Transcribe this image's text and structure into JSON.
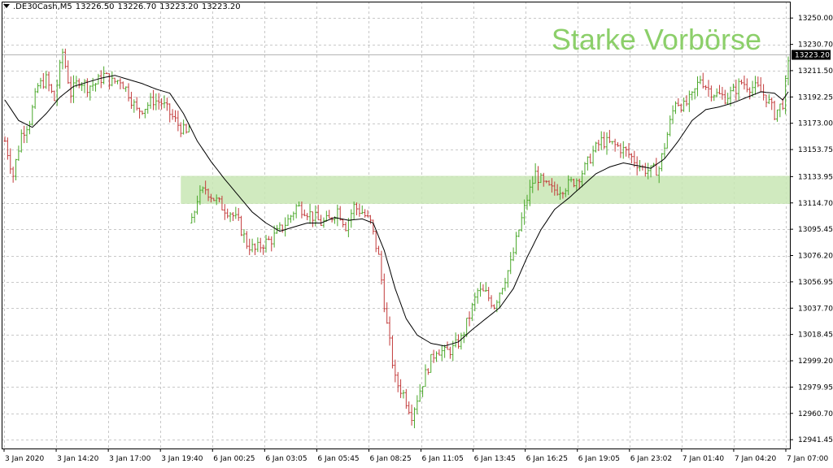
{
  "header": {
    "symbol": ".DE30Cash,M5",
    "open": "13226.50",
    "high": "13226.70",
    "low": "13223.20",
    "close": "13223.20"
  },
  "annotation": "Starke Vorbörse",
  "current_price": "13223.20",
  "colors": {
    "bull": "#4aa82a",
    "bear": "#c23a3a",
    "ma": "#000000",
    "zone": "#c8e6b4",
    "grid": "#c8c8c8",
    "annotation": "#8ccf6a",
    "price_tag": "#000000"
  },
  "chart_data": {
    "type": "candlestick",
    "title": "",
    "xlabel": "",
    "ylabel": "",
    "ylim": [
      12935,
      13262
    ],
    "y_ticks": [
      "13250.00",
      "13230.70",
      "13211.50",
      "13192.25",
      "13173.00",
      "13153.75",
      "13133.95",
      "13114.70",
      "13095.45",
      "13076.20",
      "13056.95",
      "13037.70",
      "13018.45",
      "12999.20",
      "12979.95",
      "12960.70",
      "12941.45"
    ],
    "x_ticks": [
      "3 Jan 2020",
      "3 Jan 14:20",
      "3 Jan 17:00",
      "3 Jan 19:40",
      "6 Jan 00:25",
      "6 Jan 03:05",
      "6 Jan 05:45",
      "6 Jan 08:25",
      "6 Jan 11:05",
      "6 Jan 13:45",
      "6 Jan 16:25",
      "6 Jan 19:05",
      "6 Jan 23:02",
      "7 Jan 01:40",
      "7 Jan 04:20",
      "7 Jan 07:00"
    ],
    "zone": {
      "label": "",
      "from": 13114.0,
      "to": 13134.5
    },
    "price_anchors": [
      [
        0,
        13160
      ],
      [
        3,
        13135
      ],
      [
        6,
        13165
      ],
      [
        9,
        13175
      ],
      [
        12,
        13200
      ],
      [
        15,
        13205
      ],
      [
        18,
        13190
      ],
      [
        21,
        13225
      ],
      [
        24,
        13195
      ],
      [
        27,
        13205
      ],
      [
        30,
        13200
      ],
      [
        33,
        13202
      ],
      [
        36,
        13208
      ],
      [
        39,
        13203
      ],
      [
        42,
        13205
      ],
      [
        45,
        13195
      ],
      [
        48,
        13182
      ],
      [
        51,
        13185
      ],
      [
        54,
        13190
      ],
      [
        57,
        13188
      ],
      [
        60,
        13180
      ],
      [
        63,
        13172
      ],
      [
        66,
        13165
      ],
      [
        67,
        13170
      ],
      [
        68,
        13100
      ],
      [
        70,
        13118
      ],
      [
        73,
        13125
      ],
      [
        76,
        13118
      ],
      [
        79,
        13112
      ],
      [
        82,
        13108
      ],
      [
        85,
        13100
      ],
      [
        88,
        13085
      ],
      [
        91,
        13080
      ],
      [
        94,
        13085
      ],
      [
        97,
        13088
      ],
      [
        100,
        13095
      ],
      [
        103,
        13102
      ],
      [
        106,
        13112
      ],
      [
        109,
        13110
      ],
      [
        112,
        13105
      ],
      [
        115,
        13100
      ],
      [
        118,
        13102
      ],
      [
        121,
        13110
      ],
      [
        124,
        13098
      ],
      [
        127,
        13112
      ],
      [
        130,
        13108
      ],
      [
        133,
        13100
      ],
      [
        136,
        13075
      ],
      [
        139,
        13025
      ],
      [
        142,
        12985
      ],
      [
        145,
        12975
      ],
      [
        148,
        12960
      ],
      [
        151,
        12978
      ],
      [
        154,
        12995
      ],
      [
        157,
        13008
      ],
      [
        160,
        13005
      ],
      [
        163,
        13008
      ],
      [
        166,
        13015
      ],
      [
        169,
        13032
      ],
      [
        172,
        13050
      ],
      [
        175,
        13048
      ],
      [
        178,
        13040
      ],
      [
        181,
        13055
      ],
      [
        184,
        13070
      ],
      [
        187,
        13095
      ],
      [
        190,
        13118
      ],
      [
        193,
        13136
      ],
      [
        196,
        13128
      ],
      [
        199,
        13124
      ],
      [
        202,
        13125
      ],
      [
        205,
        13128
      ],
      [
        208,
        13132
      ],
      [
        211,
        13140
      ],
      [
        214,
        13152
      ],
      [
        217,
        13160
      ],
      [
        220,
        13158
      ],
      [
        223,
        13156
      ],
      [
        226,
        13152
      ],
      [
        229,
        13146
      ],
      [
        232,
        13140
      ],
      [
        235,
        13138
      ],
      [
        238,
        13140
      ],
      [
        241,
        13165
      ],
      [
        244,
        13190
      ],
      [
        247,
        13185
      ],
      [
        250,
        13192
      ],
      [
        253,
        13206
      ],
      [
        256,
        13198
      ],
      [
        259,
        13194
      ],
      [
        262,
        13192
      ],
      [
        265,
        13196
      ],
      [
        268,
        13203
      ],
      [
        271,
        13200
      ],
      [
        274,
        13198
      ],
      [
        277,
        13192
      ],
      [
        280,
        13180
      ],
      [
        283,
        13188
      ],
      [
        285,
        13215
      ]
    ],
    "ma_anchors": [
      [
        0,
        13190
      ],
      [
        5,
        13175
      ],
      [
        10,
        13170
      ],
      [
        15,
        13180
      ],
      [
        20,
        13192
      ],
      [
        25,
        13200
      ],
      [
        30,
        13203
      ],
      [
        35,
        13206
      ],
      [
        40,
        13208
      ],
      [
        45,
        13205
      ],
      [
        50,
        13202
      ],
      [
        55,
        13198
      ],
      [
        60,
        13195
      ],
      [
        65,
        13180
      ],
      [
        70,
        13160
      ],
      [
        75,
        13145
      ],
      [
        80,
        13132
      ],
      [
        85,
        13120
      ],
      [
        90,
        13108
      ],
      [
        95,
        13100
      ],
      [
        100,
        13094
      ],
      [
        105,
        13097
      ],
      [
        110,
        13100
      ],
      [
        115,
        13100
      ],
      [
        120,
        13104
      ],
      [
        125,
        13102
      ],
      [
        130,
        13103
      ],
      [
        134,
        13100
      ],
      [
        138,
        13080
      ],
      [
        142,
        13052
      ],
      [
        146,
        13030
      ],
      [
        150,
        13018
      ],
      [
        155,
        13012
      ],
      [
        160,
        13010
      ],
      [
        165,
        13013
      ],
      [
        170,
        13022
      ],
      [
        175,
        13030
      ],
      [
        180,
        13038
      ],
      [
        185,
        13052
      ],
      [
        190,
        13075
      ],
      [
        195,
        13095
      ],
      [
        200,
        13110
      ],
      [
        205,
        13118
      ],
      [
        210,
        13127
      ],
      [
        215,
        13136
      ],
      [
        220,
        13141
      ],
      [
        225,
        13144
      ],
      [
        230,
        13142
      ],
      [
        235,
        13140
      ],
      [
        240,
        13147
      ],
      [
        245,
        13160
      ],
      [
        250,
        13175
      ],
      [
        255,
        13183
      ],
      [
        260,
        13185
      ],
      [
        265,
        13188
      ],
      [
        270,
        13192
      ],
      [
        275,
        13196
      ],
      [
        280,
        13195
      ],
      [
        283,
        13190
      ],
      [
        285,
        13196
      ]
    ]
  }
}
